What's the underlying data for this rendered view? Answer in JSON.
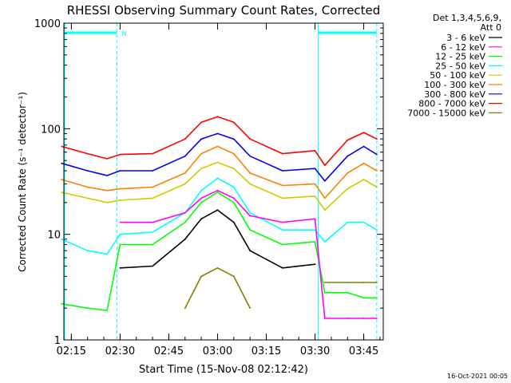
{
  "page_title": "RHESSI Observing Summary Count Rates, Corrected",
  "xlabel": "Start Time (15-Nov-08 02:12:42)",
  "ylabel": "Corrected Count Rate (s⁻¹ detector⁻¹)",
  "timestamp": "16-Oct-2021 00:05",
  "flag_label": "N",
  "legend": {
    "header1": "Det 1,3,4,5,6,9,",
    "header2": "Att 0"
  },
  "colors": {
    "3-6": "#000000",
    "6-12": "#ff00ff",
    "12-25": "#00ff00",
    "25-50": "#00ffff",
    "50-100": "#cccc00",
    "100-300": "#ff7f00",
    "300-800": "#0000ff",
    "800-7000": "#ff0000",
    "7000-15000": "#808000"
  },
  "chart_data": {
    "type": "line",
    "title": "RHESSI Observing Summary Count Rates, Corrected",
    "xlabel": "Start Time (15-Nov-08 02:12:42)",
    "ylabel": "Corrected Count Rate (s⁻¹ detector⁻¹)",
    "yscale": "log",
    "ylim": [
      1,
      1000
    ],
    "xlim": [
      "02:12:42",
      "03:51:00"
    ],
    "x_ticks": [
      "02:15",
      "02:30",
      "02:45",
      "03:00",
      "03:15",
      "03:30",
      "03:45"
    ],
    "y_ticks": [
      "1",
      "10",
      "100",
      "1000"
    ],
    "x": [
      "02:12",
      "02:20",
      "02:26",
      "02:30",
      "02:40",
      "02:50",
      "02:55",
      "03:00",
      "03:05",
      "03:10",
      "03:20",
      "03:30",
      "03:33",
      "03:40",
      "03:45",
      "03:49"
    ],
    "series": [
      {
        "name": "3 - 6 keV",
        "color": "#000000",
        "values": [
          null,
          null,
          null,
          4.8,
          5.0,
          9,
          14,
          17,
          13,
          7,
          4.8,
          5.2,
          null,
          null,
          null,
          null
        ]
      },
      {
        "name": "6 - 12 keV",
        "color": "#ff00ff",
        "values": [
          null,
          null,
          null,
          13,
          13,
          16,
          22,
          26,
          22,
          15,
          13,
          14,
          1.6,
          1.6,
          1.6,
          1.6
        ]
      },
      {
        "name": "12 - 25 keV",
        "color": "#00ff00",
        "values": [
          2.2,
          2.0,
          1.9,
          8,
          8,
          13,
          20,
          25,
          20,
          11,
          8,
          8.5,
          2.8,
          2.8,
          2.5,
          2.5
        ]
      },
      {
        "name": "25 - 50 keV",
        "color": "#00ffff",
        "values": [
          9,
          7,
          6.5,
          10,
          10.5,
          16,
          26,
          34,
          28,
          16,
          11,
          11,
          8.5,
          13,
          13,
          11
        ]
      },
      {
        "name": "50 - 100 keV",
        "color": "#cccc00",
        "values": [
          25,
          22,
          20,
          21,
          22,
          30,
          42,
          48,
          42,
          30,
          22,
          23,
          17,
          27,
          33,
          28
        ]
      },
      {
        "name": "100 - 300 keV",
        "color": "#ff7f00",
        "values": [
          33,
          28,
          26,
          27,
          28,
          38,
          58,
          68,
          58,
          38,
          29,
          30,
          22,
          38,
          47,
          40
        ]
      },
      {
        "name": "300 - 800 keV",
        "color": "#0000ff",
        "values": [
          47,
          40,
          36,
          40,
          40,
          55,
          80,
          90,
          80,
          55,
          40,
          42,
          32,
          55,
          68,
          57
        ]
      },
      {
        "name": "800 - 7000 keV",
        "color": "#ff0000",
        "values": [
          68,
          58,
          52,
          57,
          58,
          80,
          115,
          130,
          115,
          80,
          58,
          62,
          45,
          78,
          92,
          80
        ]
      },
      {
        "name": "7000 - 15000 keV",
        "color": "#808000",
        "values": [
          null,
          null,
          null,
          null,
          null,
          2.0,
          4.0,
          4.8,
          4.0,
          2.0,
          null,
          null,
          3.5,
          3.5,
          3.5,
          3.5
        ]
      }
    ],
    "grid": false,
    "legend_position": "top-right"
  }
}
